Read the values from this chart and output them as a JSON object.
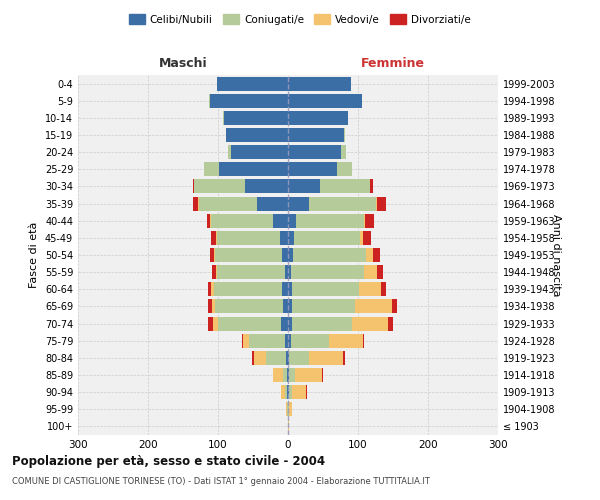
{
  "age_groups": [
    "100+",
    "95-99",
    "90-94",
    "85-89",
    "80-84",
    "75-79",
    "70-74",
    "65-69",
    "60-64",
    "55-59",
    "50-54",
    "45-49",
    "40-44",
    "35-39",
    "30-34",
    "25-29",
    "20-24",
    "15-19",
    "10-14",
    "5-9",
    "0-4"
  ],
  "birth_years": [
    "≤ 1903",
    "1904-1908",
    "1909-1913",
    "1914-1918",
    "1919-1923",
    "1924-1928",
    "1929-1933",
    "1934-1938",
    "1939-1943",
    "1944-1948",
    "1949-1953",
    "1954-1958",
    "1959-1963",
    "1964-1968",
    "1969-1973",
    "1974-1978",
    "1979-1983",
    "1984-1988",
    "1989-1993",
    "1994-1998",
    "1999-2003"
  ],
  "maschi": {
    "celibi": [
      0,
      0,
      1,
      2,
      3,
      4,
      10,
      7,
      8,
      5,
      8,
      12,
      22,
      45,
      62,
      98,
      82,
      88,
      92,
      112,
      102
    ],
    "coniugati": [
      0,
      1,
      3,
      5,
      28,
      52,
      90,
      98,
      98,
      96,
      96,
      90,
      88,
      82,
      72,
      22,
      4,
      1,
      1,
      1,
      0
    ],
    "vedovi": [
      0,
      2,
      6,
      14,
      18,
      8,
      7,
      4,
      4,
      2,
      2,
      1,
      1,
      1,
      0,
      0,
      0,
      0,
      0,
      0,
      0
    ],
    "divorziati": [
      0,
      0,
      0,
      0,
      2,
      2,
      7,
      5,
      5,
      5,
      5,
      7,
      5,
      7,
      2,
      0,
      0,
      0,
      0,
      0,
      0
    ]
  },
  "femmine": {
    "nubili": [
      0,
      0,
      1,
      2,
      2,
      4,
      6,
      6,
      6,
      4,
      7,
      8,
      12,
      30,
      45,
      70,
      75,
      80,
      85,
      105,
      90
    ],
    "coniugate": [
      0,
      1,
      4,
      8,
      28,
      55,
      85,
      90,
      95,
      105,
      105,
      95,
      96,
      96,
      72,
      22,
      8,
      1,
      1,
      1,
      0
    ],
    "vedove": [
      1,
      5,
      20,
      38,
      48,
      48,
      52,
      52,
      32,
      18,
      10,
      4,
      2,
      1,
      0,
      0,
      0,
      0,
      0,
      0,
      0
    ],
    "divorziate": [
      0,
      0,
      2,
      2,
      4,
      2,
      7,
      7,
      7,
      9,
      9,
      11,
      13,
      13,
      4,
      0,
      0,
      0,
      0,
      0,
      0
    ]
  },
  "colors": {
    "celibi": "#3a6ea5",
    "coniugati": "#b5cb99",
    "vedovi": "#f5c36e",
    "divorziati": "#cc2222"
  },
  "title": "Popolazione per età, sesso e stato civile - 2004",
  "subtitle": "COMUNE DI CASTIGLIONE TORINESE (TO) - Dati ISTAT 1° gennaio 2004 - Elaborazione TUTTITALIA.IT",
  "xlabel_left": "Maschi",
  "xlabel_right": "Femmine",
  "ylabel_left": "Fasce di età",
  "ylabel_right": "Anni di nascita",
  "xlim": 300,
  "legend_labels": [
    "Celibi/Nubili",
    "Coniugati/e",
    "Vedovi/e",
    "Divorziati/e"
  ],
  "background_color": "#ffffff",
  "plot_bg_color": "#f0f0f0",
  "grid_color": "#cccccc"
}
